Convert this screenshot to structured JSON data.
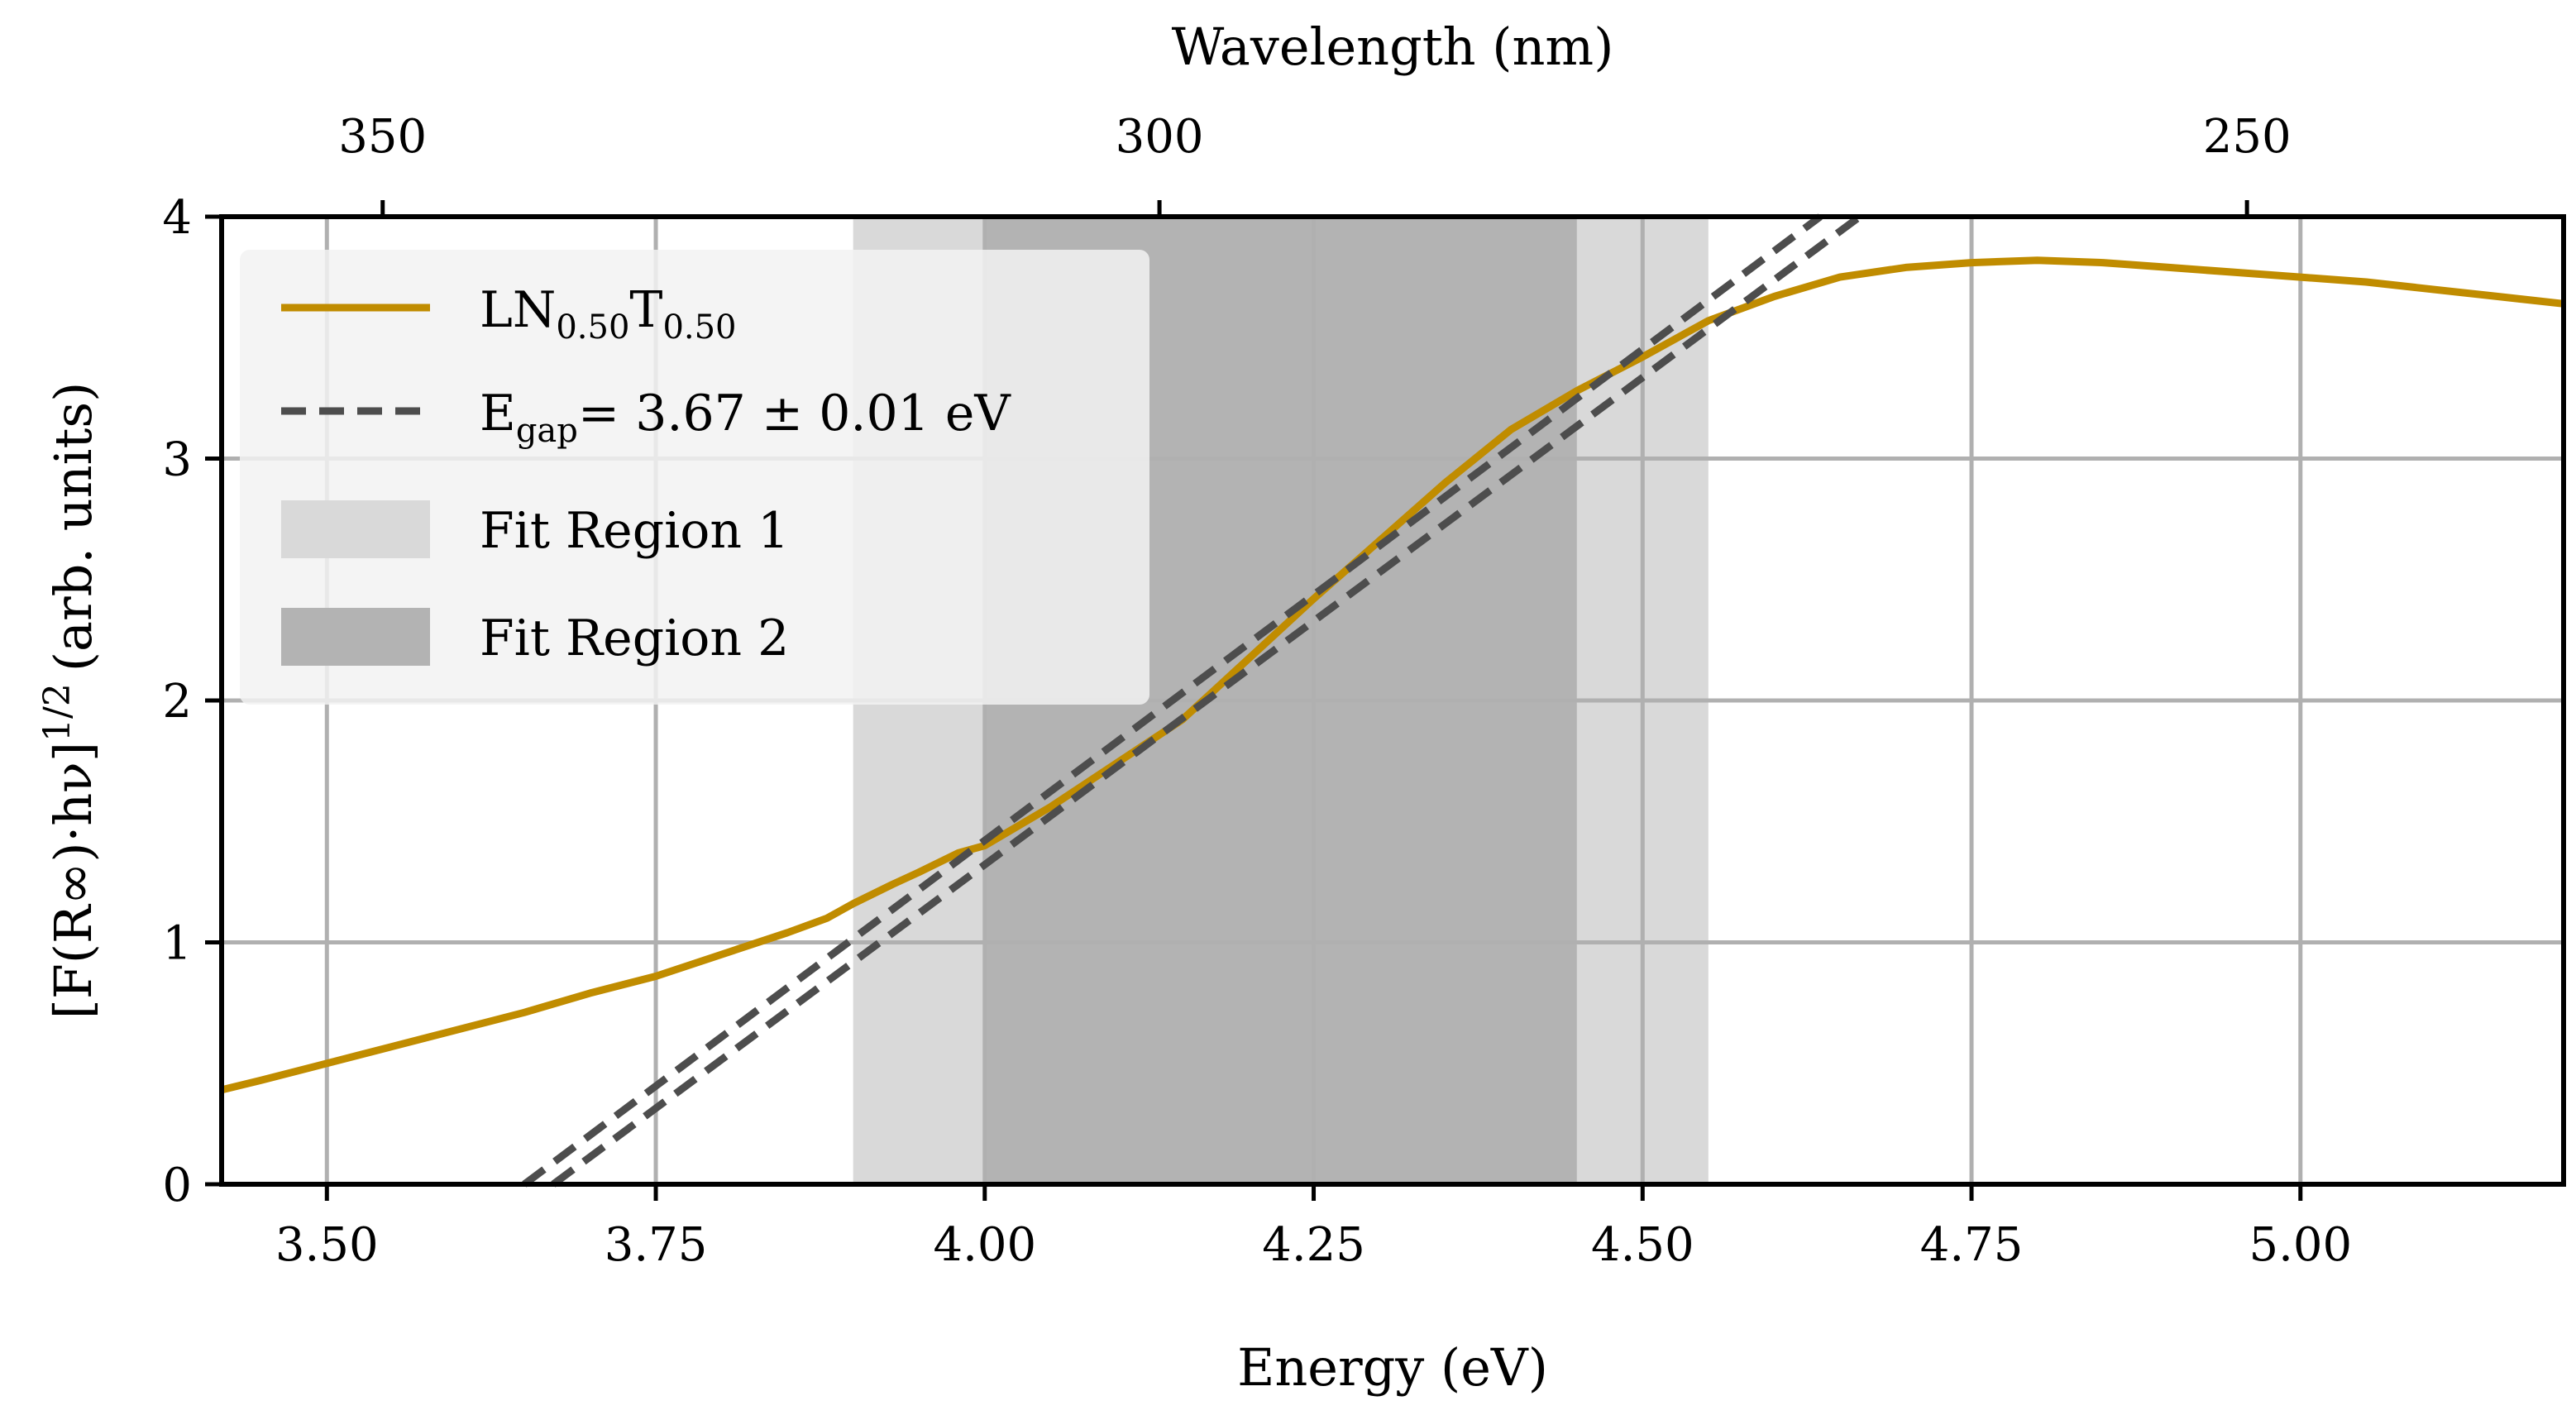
{
  "chart_data": {
    "type": "line",
    "xlabel": "Energy (eV)",
    "ylabel": "[F(R∞)·hν]",
    "ylabel_superscript": "1/2",
    "ylabel_units": "(arb. units)",
    "secondary_xlabel": "Wavelength (nm)",
    "xlim": [
      3.42,
      5.2
    ],
    "ylim": [
      0,
      4
    ],
    "xticks": [
      3.5,
      3.75,
      4.0,
      4.25,
      4.5,
      4.75,
      5.0
    ],
    "xtick_labels": [
      "3.50",
      "3.75",
      "4.00",
      "4.25",
      "4.50",
      "4.75",
      "5.00"
    ],
    "yticks": [
      0,
      1,
      2,
      3,
      4
    ],
    "ytick_labels": [
      "0",
      "1",
      "2",
      "3",
      "4"
    ],
    "secondary_xticks_nm": [
      350,
      300,
      250
    ],
    "secondary_xtick_labels": [
      "350",
      "300",
      "250"
    ],
    "grid": true,
    "colors": {
      "series": "#c08c00",
      "fit": "#4d4d4d",
      "region1": "#d9d9d9",
      "region2": "#b3b3b3",
      "grid": "#b0b0b0"
    },
    "regions": [
      {
        "name": "Fit Region 1",
        "x0": 3.9,
        "x1": 4.55
      },
      {
        "name": "Fit Region 2",
        "x0": 4.0,
        "x1": 4.45
      }
    ],
    "series": [
      {
        "name": "LN0.50T0.50",
        "x": [
          3.42,
          3.45,
          3.5,
          3.55,
          3.6,
          3.65,
          3.7,
          3.75,
          3.8,
          3.85,
          3.88,
          3.9,
          3.93,
          3.95,
          3.98,
          4.0,
          4.05,
          4.1,
          4.15,
          4.2,
          4.25,
          4.3,
          4.35,
          4.4,
          4.45,
          4.5,
          4.55,
          4.6,
          4.65,
          4.7,
          4.75,
          4.8,
          4.85,
          4.9,
          4.95,
          5.0,
          5.05,
          5.1,
          5.15,
          5.2
        ],
        "y": [
          0.39,
          0.43,
          0.5,
          0.57,
          0.64,
          0.71,
          0.79,
          0.86,
          0.95,
          1.04,
          1.1,
          1.16,
          1.24,
          1.29,
          1.37,
          1.4,
          1.56,
          1.74,
          1.92,
          2.17,
          2.42,
          2.66,
          2.9,
          3.12,
          3.28,
          3.42,
          3.57,
          3.67,
          3.75,
          3.79,
          3.81,
          3.82,
          3.81,
          3.79,
          3.77,
          3.75,
          3.73,
          3.7,
          3.67,
          3.64
        ]
      }
    ],
    "fit_lines": [
      {
        "name": "fit-a",
        "x": [
          3.65,
          4.635
        ],
        "y": [
          0,
          4.0
        ]
      },
      {
        "name": "fit-b",
        "x": [
          3.672,
          4.665
        ],
        "y": [
          0,
          4.0
        ]
      }
    ],
    "legend": {
      "location": "upper left",
      "entries": [
        {
          "kind": "line",
          "base": "LN",
          "sub1": "0.50",
          "mid": "T",
          "sub2": "0.50"
        },
        {
          "kind": "dashed",
          "base": "E",
          "sub": "gap",
          "rest": "= 3.67 ± 0.01 eV"
        },
        {
          "kind": "patch-light",
          "label": "Fit Region 1"
        },
        {
          "kind": "patch-dark",
          "label": "Fit Region 2"
        }
      ]
    }
  }
}
